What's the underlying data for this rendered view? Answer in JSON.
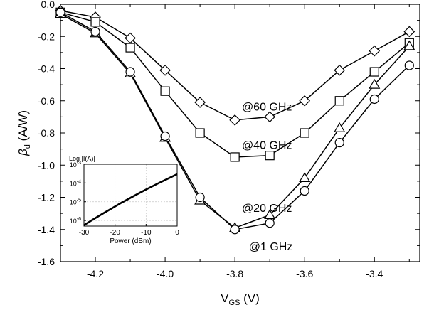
{
  "chart_data": [
    {
      "type": "line",
      "xlabel": "V",
      "xlabel_sub": "GS",
      "xlabel_unit": " (V)",
      "ylabel": "β",
      "ylabel_sub": "d",
      "ylabel_unit": " (A/W)",
      "xlim": [
        -4.3,
        -3.27
      ],
      "ylim": [
        -1.6,
        0.0
      ],
      "xticks": [
        -4.2,
        -4.0,
        -3.8,
        -3.6,
        -3.4
      ],
      "xtick_labels": [
        "-4.2",
        "-4.0",
        "-3.8",
        "-3.6",
        "-3.4"
      ],
      "yticks": [
        0.0,
        -0.2,
        -0.4,
        -0.6,
        -0.8,
        -1.0,
        -1.2,
        -1.4,
        -1.6
      ],
      "ytick_labels": [
        "0.0",
        "-0.2",
        "-0.4",
        "-0.6",
        "-0.8",
        "-1.0",
        "-1.2",
        "-1.4",
        "-1.6"
      ],
      "grid": false,
      "series": [
        {
          "name": "@60 GHz",
          "marker": "diamond",
          "x": [
            -4.3,
            -4.2,
            -4.1,
            -4.0,
            -3.9,
            -3.8,
            -3.7,
            -3.6,
            -3.5,
            -3.4,
            -3.3
          ],
          "y": [
            -0.04,
            -0.08,
            -0.21,
            -0.41,
            -0.61,
            -0.72,
            -0.7,
            -0.6,
            -0.41,
            -0.29,
            -0.17
          ]
        },
        {
          "name": "@40 GHz",
          "marker": "square",
          "x": [
            -4.3,
            -4.2,
            -4.1,
            -4.0,
            -3.9,
            -3.8,
            -3.7,
            -3.6,
            -3.5,
            -3.4,
            -3.3
          ],
          "y": [
            -0.05,
            -0.11,
            -0.27,
            -0.54,
            -0.8,
            -0.95,
            -0.94,
            -0.8,
            -0.6,
            -0.42,
            -0.24
          ]
        },
        {
          "name": "@20 GHz",
          "marker": "triangle",
          "x": [
            -4.3,
            -4.2,
            -4.1,
            -4.0,
            -3.9,
            -3.8,
            -3.7,
            -3.6,
            -3.5,
            -3.4,
            -3.3
          ],
          "y": [
            -0.06,
            -0.18,
            -0.43,
            -0.83,
            -1.22,
            -1.39,
            -1.31,
            -1.08,
            -0.77,
            -0.5,
            -0.26
          ]
        },
        {
          "name": "@1 GHz",
          "marker": "circle",
          "x": [
            -4.3,
            -4.2,
            -4.1,
            -4.0,
            -3.9,
            -3.8,
            -3.7,
            -3.6,
            -3.5,
            -3.4,
            -3.3
          ],
          "y": [
            -0.05,
            -0.17,
            -0.42,
            -0.82,
            -1.2,
            -1.4,
            -1.36,
            -1.16,
            -0.86,
            -0.59,
            -0.38
          ]
        }
      ],
      "annotations": [
        {
          "text": "@60 GHz",
          "x": -3.78,
          "y": -0.66
        },
        {
          "text": "@40 GHz",
          "x": -3.78,
          "y": -0.9
        },
        {
          "text": "@20 GHz",
          "x": -3.78,
          "y": -1.29
        },
        {
          "text": "@1 GHz",
          "x": -3.76,
          "y": -1.53
        }
      ]
    },
    {
      "type": "line",
      "title": "Log |I(A)|",
      "xlabel": "Power (dBm)",
      "xlim": [
        -30,
        0
      ],
      "ylim": [
        -6.3,
        -3
      ],
      "xticks": [
        -30,
        -20,
        -10,
        0
      ],
      "xtick_labels": [
        "-30",
        "-20",
        "-10",
        "0"
      ],
      "yticks": [
        -3,
        -4,
        -5,
        -6
      ],
      "ytick_labels": [
        {
          "base": "10",
          "exp": "-3"
        },
        {
          "base": "10",
          "exp": "-4"
        },
        {
          "base": "10",
          "exp": "-5"
        },
        {
          "base": "10",
          "exp": "-6"
        }
      ],
      "grid": true,
      "series": [
        {
          "x": [
            -30,
            -27,
            -24,
            -21,
            -18,
            -15,
            -12,
            -9,
            -6,
            -3,
            0
          ],
          "y": [
            -6.25,
            -5.94,
            -5.64,
            -5.35,
            -5.06,
            -4.79,
            -4.52,
            -4.26,
            -4.01,
            -3.77,
            -3.53
          ]
        }
      ]
    }
  ]
}
